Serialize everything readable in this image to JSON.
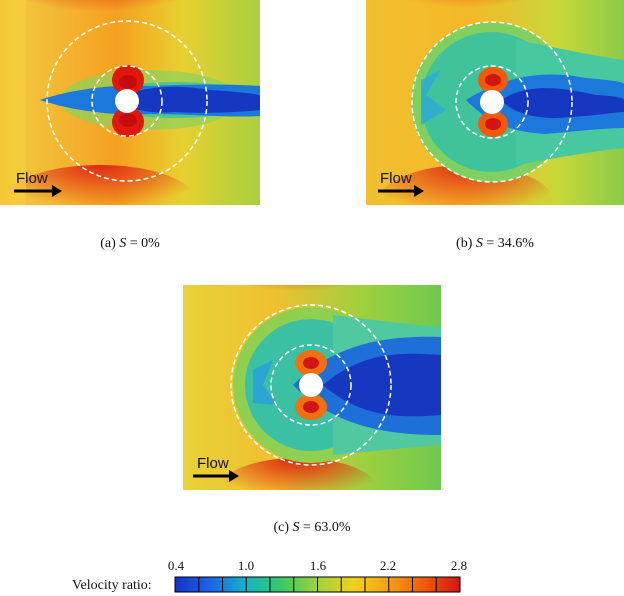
{
  "panels": [
    {
      "id": "a",
      "caption_prefix": "(a) ",
      "caption_var": "S",
      "caption_value": " = 0%",
      "flow_label": "Flow"
    },
    {
      "id": "b",
      "caption_prefix": "(b) ",
      "caption_var": "S",
      "caption_value": " = 34.6%",
      "flow_label": "Flow"
    },
    {
      "id": "c",
      "caption_prefix": "(c) ",
      "caption_var": "S",
      "caption_value": " = 63.0%",
      "flow_label": "Flow"
    }
  ],
  "colorbar": {
    "label": "Velocity ratio:",
    "min": 0.4,
    "max": 2.8,
    "ticks": [
      "0.4",
      "1.0",
      "1.6",
      "2.2",
      "2.8"
    ],
    "colors": [
      "#1432c8",
      "#1e64e6",
      "#14b4c8",
      "#3cc864",
      "#a0d23c",
      "#f0d21e",
      "#f5a014",
      "#f05a0a",
      "#d21414"
    ]
  }
}
